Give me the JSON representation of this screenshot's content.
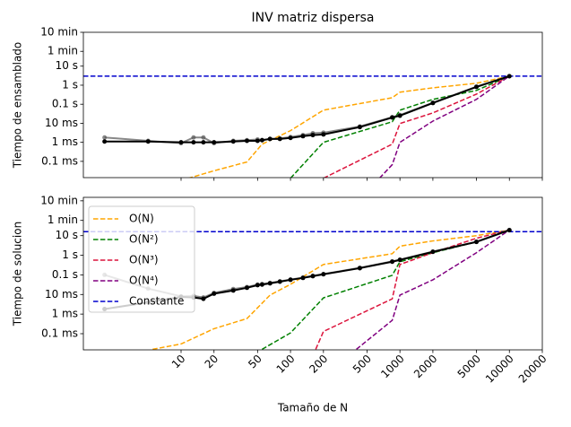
{
  "chart_data": [
    {
      "type": "line",
      "title": "INV matriz dispersa",
      "ylabel": "Tiempo de ensamblado",
      "xlog": true,
      "ylog": true,
      "xlim": [
        1.28,
        20000
      ],
      "ylim": [
        1.4e-05,
        600
      ],
      "yticks": [
        {
          "value": 600,
          "label": "10 min"
        },
        {
          "value": 60,
          "label": "1 min"
        },
        {
          "value": 10,
          "label": "10 s"
        },
        {
          "value": 1,
          "label": "1 s"
        },
        {
          "value": 0.1,
          "label": "0.1 s"
        },
        {
          "value": 0.01,
          "label": "10 ms"
        },
        {
          "value": 0.001,
          "label": "1 ms"
        },
        {
          "value": 0.0001,
          "label": "0.1 ms"
        }
      ],
      "series": [
        {
          "color": "#ffa500",
          "linestyle": "dashed",
          "x": [
            10,
            20,
            40,
            55,
            100,
            200,
            850,
            1000,
            2000,
            5000,
            10000
          ],
          "values": [
            1e-05,
            3.2e-05,
            9.3e-05,
            0.0008,
            0.0041,
            0.049,
            0.22,
            0.43,
            0.73,
            1.26,
            3.0
          ]
        },
        {
          "color": "#008000",
          "linestyle": "dashed",
          "x": [
            100,
            200,
            850,
            1000,
            2000,
            5000,
            10000
          ],
          "values": [
            1.3e-05,
            0.001,
            0.012,
            0.049,
            0.18,
            0.53,
            3.0
          ]
        },
        {
          "color": "#dc143c",
          "linestyle": "dashed",
          "x": [
            200,
            850,
            1000,
            2000,
            5000,
            10000
          ],
          "values": [
            1.3e-05,
            0.0008,
            0.0097,
            0.035,
            0.34,
            3.0
          ]
        },
        {
          "color": "#800080",
          "linestyle": "dashed",
          "x": [
            650,
            850,
            1000,
            2000,
            5000,
            10000
          ],
          "values": [
            1.3e-05,
            6.7e-05,
            0.001,
            0.013,
            0.18,
            3.0
          ]
        },
        {
          "color": "#0000cd",
          "linestyle": "dashed",
          "hline": 3
        },
        {
          "color": "#555555",
          "alpha": 0.7,
          "marker": "o",
          "x": [
            2,
            5,
            10,
            13,
            16,
            20,
            30,
            40,
            50,
            55,
            65,
            80,
            100,
            130,
            160,
            200,
            430,
            850,
            1000,
            2000,
            5000,
            10000
          ],
          "values": [
            0.0018,
            0.0012,
            0.0009,
            0.0018,
            0.0018,
            0.0009,
            0.0012,
            0.0013,
            0.0014,
            0.0013,
            0.0015,
            0.0016,
            0.0019,
            0.0024,
            0.003,
            0.0032,
            0.0068,
            0.021,
            0.027,
            0.12,
            0.84,
            3.0
          ]
        },
        {
          "color": "#000000",
          "marker": "o",
          "x": [
            2,
            5,
            10,
            13,
            16,
            20,
            30,
            40,
            50,
            55,
            65,
            80,
            100,
            130,
            160,
            200,
            430,
            850,
            1000,
            2000,
            5000,
            10000
          ],
          "values": [
            0.0011,
            0.0011,
            0.001,
            0.001,
            0.001,
            0.001,
            0.0011,
            0.0012,
            0.0012,
            0.0013,
            0.0015,
            0.0015,
            0.0017,
            0.0021,
            0.0024,
            0.0026,
            0.0063,
            0.02,
            0.025,
            0.116,
            0.81,
            2.96
          ]
        }
      ]
    },
    {
      "type": "line",
      "ylabel": "Tiempo de solucion",
      "xlabel": "Tamaño de N",
      "xlog": true,
      "ylog": true,
      "legend": "upper left",
      "xlim": [
        1.28,
        20000
      ],
      "ylim": [
        1.5e-05,
        900
      ],
      "xticks": [
        10,
        20,
        50,
        100,
        200,
        500,
        1000,
        2000,
        5000,
        10000,
        20000
      ],
      "yticks": [
        {
          "value": 600,
          "label": "10 min"
        },
        {
          "value": 60,
          "label": "1 min"
        },
        {
          "value": 10,
          "label": "10 s"
        },
        {
          "value": 1,
          "label": "1 s"
        },
        {
          "value": 0.1,
          "label": "0.1 s"
        },
        {
          "value": 0.01,
          "label": "10 ms"
        },
        {
          "value": 0.001,
          "label": "1 ms"
        },
        {
          "value": 0.0001,
          "label": "0.1 ms"
        }
      ],
      "series": [
        {
          "name": "O(N)",
          "color": "#ffa500",
          "linestyle": "dashed",
          "x": [
            5.5,
            10,
            20,
            40,
            65,
            100,
            200,
            850,
            1000,
            2000,
            5000,
            10000
          ],
          "values": [
            1.6e-05,
            3e-05,
            0.00018,
            0.00059,
            0.0093,
            0.033,
            0.34,
            1.2,
            2.9,
            5.4,
            10,
            19.5
          ]
        },
        {
          "name": "O(N²)",
          "color": "#008000",
          "linestyle": "dashed",
          "x": [
            55,
            100,
            200,
            850,
            1000,
            2000,
            5000,
            10000
          ],
          "values": [
            1.6e-05,
            0.00011,
            0.0067,
            0.095,
            0.47,
            1.35,
            4.8,
            19.5
          ]
        },
        {
          "name": "O(N³)",
          "color": "#dc143c",
          "linestyle": "dashed",
          "x": [
            170,
            200,
            850,
            1000,
            2000,
            5000,
            10000
          ],
          "values": [
            1.6e-05,
            0.00013,
            0.006,
            0.34,
            1.35,
            7.4,
            19.5
          ]
        },
        {
          "name": "O(N⁴)",
          "color": "#800080",
          "linestyle": "dashed",
          "x": [
            400,
            850,
            1000,
            2000,
            5000,
            10000
          ],
          "values": [
            1.6e-05,
            0.00048,
            0.0093,
            0.056,
            1.35,
            19.5
          ]
        },
        {
          "name": "Constante",
          "color": "#0000cd",
          "linestyle": "dashed",
          "hline": 16
        },
        {
          "color": "#555555",
          "alpha": 0.7,
          "marker": "o",
          "x": [
            2,
            5,
            10,
            13,
            16,
            20,
            30,
            40,
            50,
            55,
            65,
            80,
            100,
            130,
            160,
            200,
            430,
            850,
            1000,
            2000,
            5000,
            10000
          ],
          "values": [
            0.1,
            0.02,
            0.008,
            0.0085,
            0.007,
            0.012,
            0.019,
            0.024,
            0.032,
            0.034,
            0.039,
            0.047,
            0.058,
            0.072,
            0.09,
            0.11,
            0.23,
            0.49,
            0.6,
            1.55,
            4.9,
            19.5
          ]
        },
        {
          "color": "#000000",
          "marker": "o",
          "x": [
            2,
            5,
            10,
            13,
            16,
            20,
            30,
            40,
            50,
            55,
            65,
            80,
            100,
            130,
            160,
            200,
            430,
            850,
            1000,
            2000,
            5000,
            10000
          ],
          "values": [
            0.0018,
            0.004,
            0.0075,
            0.007,
            0.006,
            0.011,
            0.016,
            0.022,
            0.03,
            0.032,
            0.037,
            0.045,
            0.056,
            0.07,
            0.086,
            0.107,
            0.22,
            0.47,
            0.58,
            1.5,
            4.8,
            19
          ]
        }
      ]
    }
  ]
}
